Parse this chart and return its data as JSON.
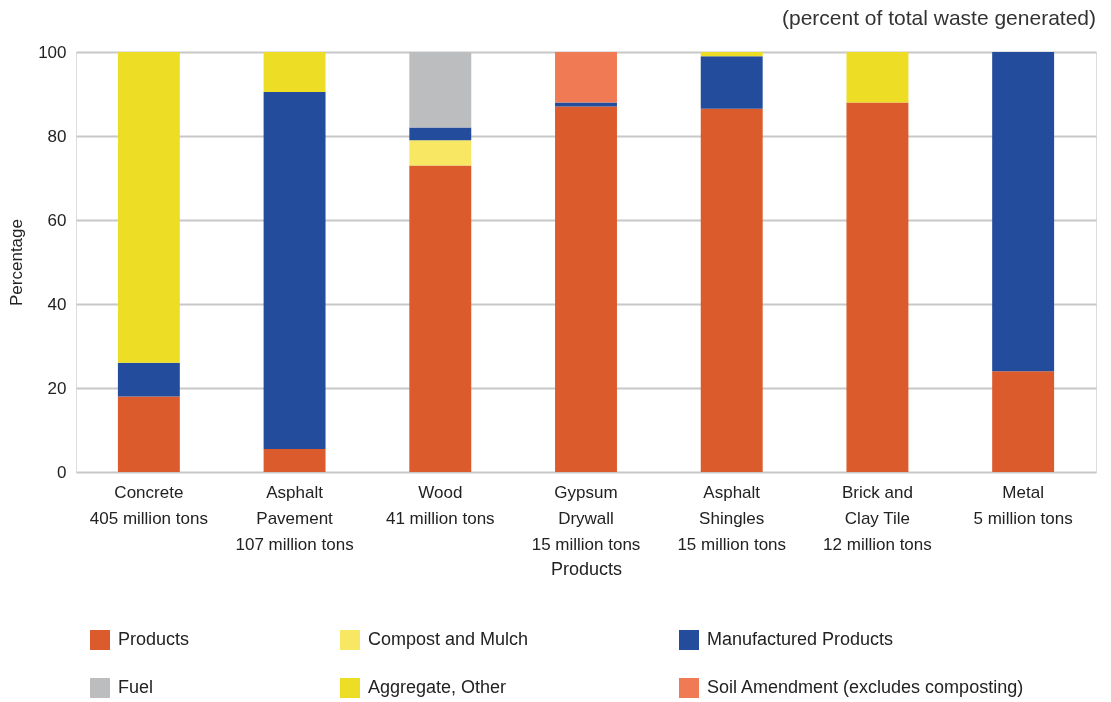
{
  "chart_data": {
    "type": "bar",
    "stacked": true,
    "title": "(percent of total waste generated)",
    "xlabel": "Products",
    "ylabel": "Percentage",
    "categories": [
      "Concrete\n405 million tons",
      "Asphalt\nPavement\n107 million tons",
      "Wood\n41 million tons",
      "Gypsum\nDrywall\n15 million tons",
      "Asphalt\nShingles\n15 million tons",
      "Brick and\nClay Tile\n12 million tons",
      "Metal\n5 million tons"
    ],
    "series": [
      {
        "name": "Products",
        "color": "#dc5b2c",
        "values": [
          18,
          5.5,
          73,
          87,
          86.5,
          88,
          24
        ]
      },
      {
        "name": "Compost and Mulch",
        "color": "#f7e763",
        "values": [
          null,
          null,
          6,
          null,
          null,
          null,
          null
        ]
      },
      {
        "name": "Manufactured Products",
        "color": "#244c9d",
        "values": [
          8,
          85,
          3,
          1,
          12.5,
          null,
          76
        ]
      },
      {
        "name": "Fuel",
        "color": "#bcbdbf",
        "values": [
          null,
          null,
          18,
          null,
          null,
          null,
          null
        ]
      },
      {
        "name": "Aggregate, Other",
        "color": "#eddd25",
        "values": [
          74,
          9.5,
          null,
          null,
          1,
          12,
          null
        ]
      },
      {
        "name": "Soil Amendment (excludes composting)",
        "color": "#f07a53",
        "values": [
          null,
          null,
          null,
          12,
          null,
          null,
          null
        ]
      }
    ],
    "ylim": [
      0,
      100
    ],
    "yticks": [
      0,
      20,
      40,
      60,
      80,
      100
    ],
    "grid": "y",
    "legend": "bottom"
  }
}
